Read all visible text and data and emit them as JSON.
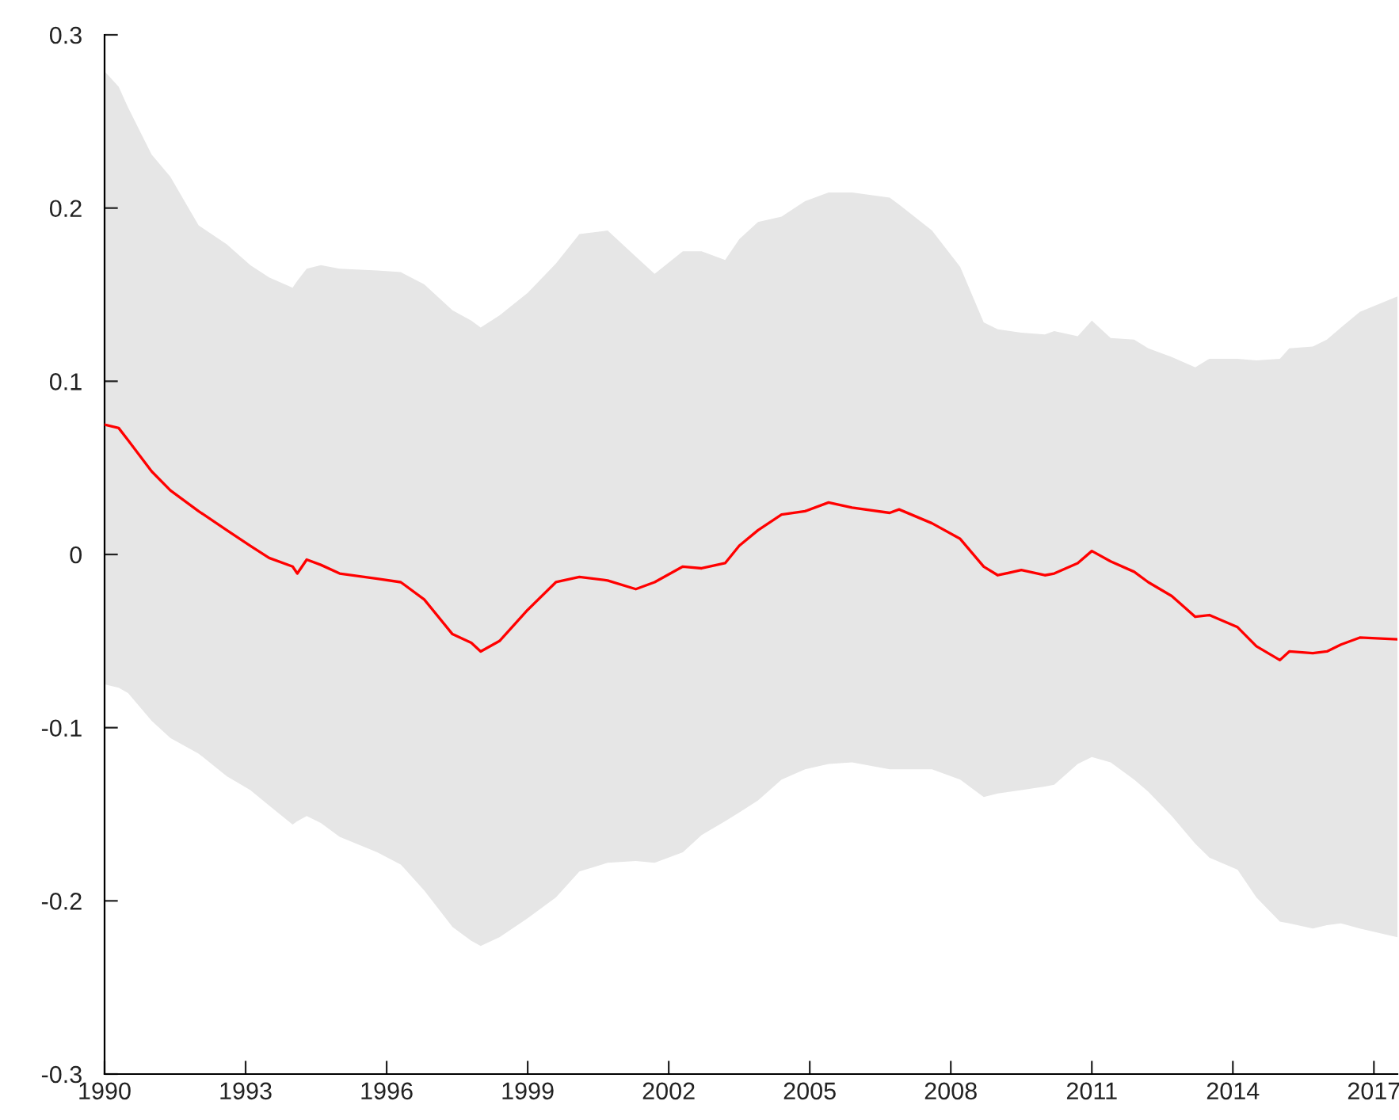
{
  "chart_data": {
    "type": "line",
    "xlim": [
      1990,
      2017.5
    ],
    "ylim": [
      -0.3,
      0.3
    ],
    "xticks": [
      1990,
      1993,
      1996,
      1999,
      2002,
      2005,
      2008,
      2011,
      2014,
      2017
    ],
    "yticks": [
      {
        "value": -0.3,
        "label": "-0.3"
      },
      {
        "value": -0.2,
        "label": "-0.2"
      },
      {
        "value": -0.1,
        "label": "-0.1"
      },
      0,
      0.1,
      0.2,
      0.3
    ],
    "grid": false,
    "series": [
      {
        "color": "#ff0000",
        "x": [
          1990,
          1990.3,
          1990.5,
          1991.0,
          1991.4,
          1992.0,
          1992.6,
          1993.1,
          1993.5,
          1994.0,
          1994.1,
          1994.3,
          1994.6,
          1995.0,
          1995.8,
          1996.3,
          1996.8,
          1997.4,
          1997.8,
          1998.0,
          1998.4,
          1999.0,
          1999.6,
          2000.1,
          2000.7,
          2001.3,
          2001.7,
          2002.3,
          2002.7,
          2003.2,
          2003.5,
          2003.9,
          2004.4,
          2004.9,
          2005.4,
          2005.9,
          2006.7,
          2006.9,
          2007.6,
          2008.2,
          2008.7,
          2009.0,
          2009.5,
          2010.0,
          2010.2,
          2010.7,
          2011.0,
          2011.4,
          2011.9,
          2012.2,
          2012.7,
          2013.2,
          2013.5,
          2014.1,
          2014.5,
          2015.0,
          2015.2,
          2015.7,
          2016.0,
          2016.3,
          2016.7,
          2017.5
        ],
        "values": [
          0.075,
          0.073,
          0.066,
          0.048,
          0.037,
          0.025,
          0.014,
          0.005,
          -0.002,
          -0.007,
          -0.011,
          -0.003,
          -0.006,
          -0.011,
          -0.014,
          -0.016,
          -0.026,
          -0.046,
          -0.051,
          -0.056,
          -0.05,
          -0.032,
          -0.016,
          -0.013,
          -0.015,
          -0.02,
          -0.016,
          -0.007,
          -0.008,
          -0.005,
          0.005,
          0.014,
          0.023,
          0.025,
          0.03,
          0.027,
          0.024,
          0.026,
          0.018,
          0.009,
          -0.007,
          -0.012,
          -0.009,
          -0.012,
          -0.011,
          -0.005,
          0.002,
          -0.004,
          -0.01,
          -0.016,
          -0.024,
          -0.036,
          -0.035,
          -0.042,
          -0.053,
          -0.061,
          -0.056,
          -0.057,
          -0.056,
          -0.052,
          -0.048,
          -0.049
        ],
        "upper": [
          0.279,
          0.27,
          0.258,
          0.231,
          0.218,
          0.19,
          0.179,
          0.167,
          0.16,
          0.154,
          0.158,
          0.165,
          0.167,
          0.165,
          0.164,
          0.163,
          0.156,
          0.141,
          0.135,
          0.131,
          0.138,
          0.151,
          0.168,
          0.185,
          0.187,
          0.172,
          0.162,
          0.175,
          0.175,
          0.17,
          0.182,
          0.192,
          0.195,
          0.204,
          0.209,
          0.209,
          0.206,
          0.202,
          0.187,
          0.166,
          0.134,
          0.13,
          0.128,
          0.127,
          0.129,
          0.126,
          0.135,
          0.125,
          0.124,
          0.119,
          0.114,
          0.108,
          0.113,
          0.113,
          0.112,
          0.113,
          0.119,
          0.12,
          0.124,
          0.131,
          0.14,
          0.149
        ],
        "lower": [
          -0.075,
          -0.077,
          -0.08,
          -0.096,
          -0.106,
          -0.115,
          -0.128,
          -0.136,
          -0.145,
          -0.156,
          -0.154,
          -0.151,
          -0.155,
          -0.163,
          -0.172,
          -0.179,
          -0.194,
          -0.215,
          -0.223,
          -0.226,
          -0.221,
          -0.21,
          -0.198,
          -0.183,
          -0.178,
          -0.177,
          -0.178,
          -0.172,
          -0.162,
          -0.154,
          -0.149,
          -0.142,
          -0.13,
          -0.124,
          -0.121,
          -0.12,
          -0.124,
          -0.124,
          -0.124,
          -0.13,
          -0.14,
          -0.138,
          -0.136,
          -0.134,
          -0.133,
          -0.121,
          -0.117,
          -0.12,
          -0.13,
          -0.137,
          -0.151,
          -0.167,
          -0.175,
          -0.182,
          -0.198,
          -0.212,
          -0.213,
          -0.216,
          -0.214,
          -0.213,
          -0.216,
          -0.221
        ]
      }
    ]
  }
}
